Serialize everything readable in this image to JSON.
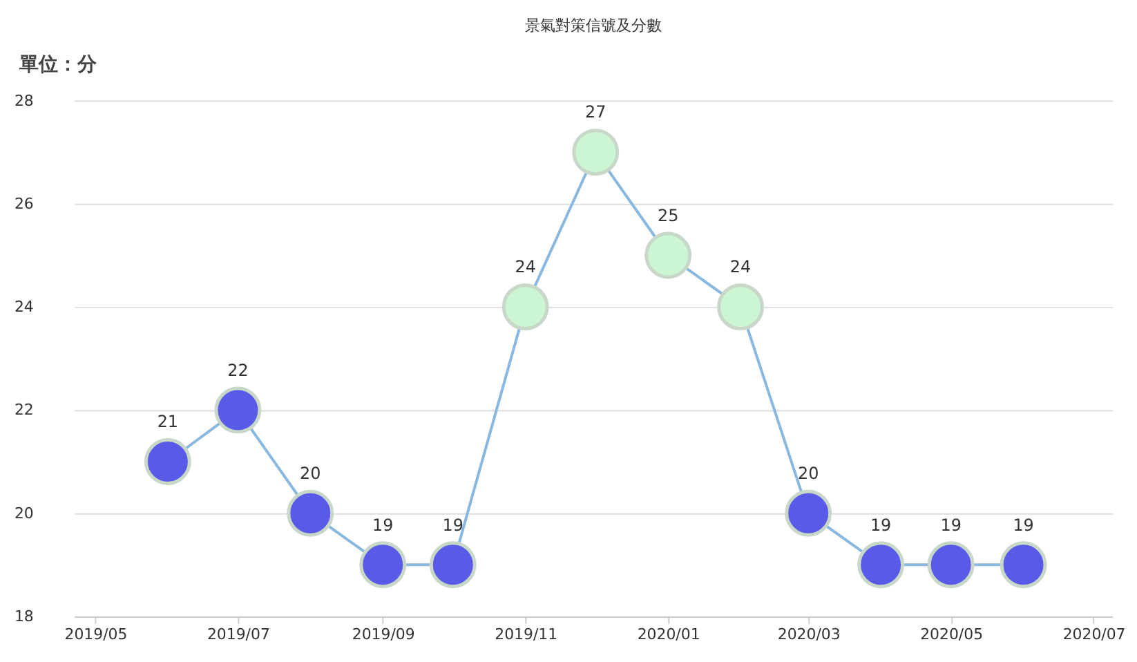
{
  "chart_data": {
    "type": "line",
    "title": "景氣對策信號及分數",
    "ylabel": "單位：分",
    "x": [
      "2019-06",
      "2019-07",
      "2019-08",
      "2019-09",
      "2019-10",
      "2019-11",
      "2019-12",
      "2020-01",
      "2020-02",
      "2020-03",
      "2020-04",
      "2020-05",
      "2020-06"
    ],
    "series": [
      {
        "color": "#88b8e0",
        "values": [
          21,
          22,
          20,
          19,
          19,
          24,
          27,
          25,
          24,
          20,
          19,
          19,
          19
        ],
        "colors": [
          "#5a5ae8",
          "#5a5ae8",
          "#5a5ae8",
          "#5a5ae8",
          "#5a5ae8",
          "#ccf5d4",
          "#ccf5d4",
          "#ccf5d4",
          "#ccf5d4",
          "#5a5ae8",
          "#5a5ae8",
          "#5a5ae8",
          "#5a5ae8"
        ]
      }
    ],
    "xlim": [
      "2019-04-22",
      "2020-07-09"
    ],
    "xticks": [
      {
        "value": "2019-05",
        "label": "2019/05"
      },
      {
        "value": "2019-07",
        "label": "2019/07"
      },
      {
        "value": "2019-09",
        "label": "2019/09"
      },
      {
        "value": "2019-11",
        "label": "2019/11"
      },
      {
        "value": "2020-01",
        "label": "2020/01"
      },
      {
        "value": "2020-03",
        "label": "2020/03"
      },
      {
        "value": "2020-05",
        "label": "2020/05"
      },
      {
        "value": "2020-07",
        "label": "2020/07"
      }
    ],
    "ylim": [
      18,
      28
    ],
    "yticks": [
      18,
      20,
      22,
      24,
      26,
      28
    ],
    "grid": "y",
    "marker": "circle",
    "line_style": "solid",
    "data_labels": true
  }
}
